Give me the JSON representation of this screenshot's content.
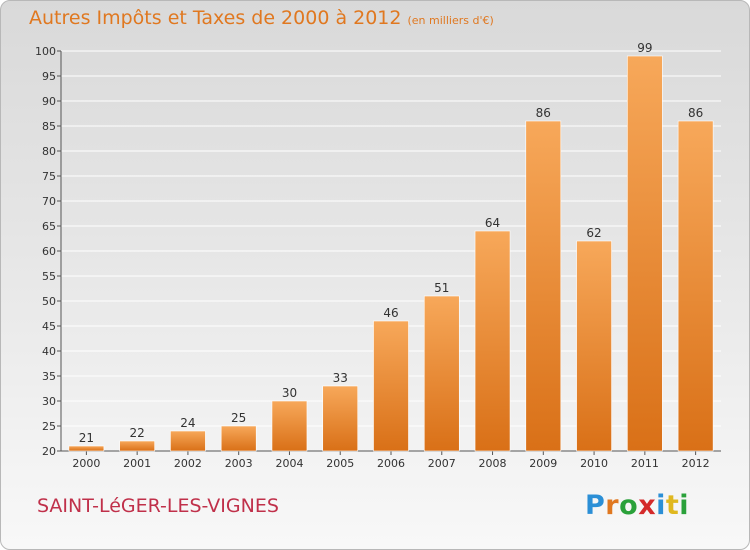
{
  "header": {
    "title": "Autres Impôts et Taxes de 2000 à 2012",
    "unit": "(en milliers d'€)"
  },
  "footer": {
    "commune": "SAINT-LéGER-LES-VIGNES",
    "logo_text": "Proxiti",
    "logo_letters": [
      {
        "ch": "P",
        "color": "#2b8fd6"
      },
      {
        "ch": "r",
        "color": "#e07820"
      },
      {
        "ch": "o",
        "color": "#2aa13a"
      },
      {
        "ch": "x",
        "color": "#d42a2a"
      },
      {
        "ch": "i",
        "color": "#2b8fd6"
      },
      {
        "ch": "t",
        "color": "#e0b820"
      },
      {
        "ch": "i",
        "color": "#2aa13a"
      }
    ]
  },
  "chart_data": {
    "type": "bar",
    "title": "Autres Impôts et Taxes de 2000 à 2012",
    "subtitle": "(en milliers d'€)",
    "xlabel": "",
    "ylabel": "",
    "categories": [
      "2000",
      "2001",
      "2002",
      "2003",
      "2004",
      "2005",
      "2006",
      "2007",
      "2008",
      "2009",
      "2010",
      "2011",
      "2012"
    ],
    "values": [
      21,
      22,
      24,
      25,
      30,
      33,
      46,
      51,
      64,
      86,
      62,
      99,
      86
    ],
    "ylim": [
      20,
      100
    ],
    "yticks": [
      20,
      25,
      30,
      35,
      40,
      45,
      50,
      55,
      60,
      65,
      70,
      75,
      80,
      85,
      90,
      95,
      100
    ],
    "grid": true,
    "colors": {
      "bar_light": "#f7a85a",
      "bar_dark": "#d97017",
      "grid": "#ffffff",
      "axis": "#555555"
    }
  }
}
